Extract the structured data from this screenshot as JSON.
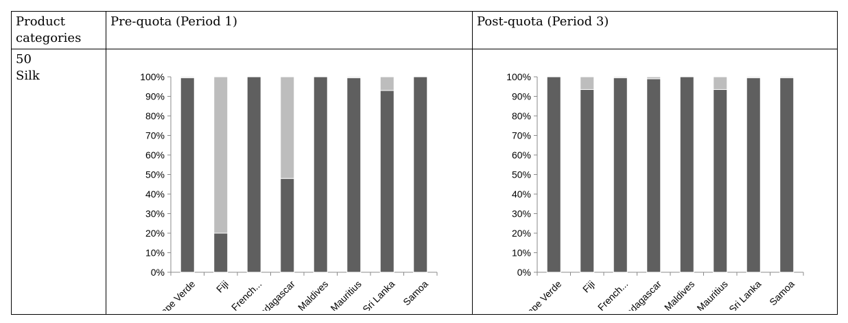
{
  "table": {
    "header": {
      "col1": [
        "Product",
        "categories"
      ],
      "col2": "Pre-quota (Period 1)",
      "col3": "Post-quota (Period 3)"
    },
    "row": {
      "category_code": "50",
      "category_name": "Silk"
    }
  },
  "colors": {
    "dark_series": "#5f5f5f",
    "light_series": "#bdbdbd",
    "axis": "#888888"
  },
  "chart_data": [
    {
      "type": "bar",
      "stacked": true,
      "title": "",
      "xlabel": "",
      "ylabel": "",
      "ylim": [
        0,
        1
      ],
      "yticks": [
        "0%",
        "10%",
        "20%",
        "30%",
        "40%",
        "50%",
        "60%",
        "70%",
        "80%",
        "90%",
        "100%"
      ],
      "categories": [
        "Cape Verde",
        "Fiji",
        "French...",
        "Madagascar",
        "Maldives",
        "Mauritius",
        "Sri Lanka",
        "Samoa"
      ],
      "series": [
        {
          "values": [
            0.995,
            0.2,
            1.0,
            0.48,
            1.0,
            0.995,
            0.93,
            1.0
          ]
        },
        {
          "values": [
            0.005,
            0.8,
            0.0,
            0.52,
            0.0,
            0.005,
            0.07,
            0.0
          ]
        }
      ],
      "grid": false,
      "legend": "none"
    },
    {
      "type": "bar",
      "stacked": true,
      "title": "",
      "xlabel": "",
      "ylabel": "",
      "ylim": [
        0,
        1
      ],
      "yticks": [
        "0%",
        "10%",
        "20%",
        "30%",
        "40%",
        "50%",
        "60%",
        "70%",
        "80%",
        "90%",
        "100%"
      ],
      "categories": [
        "Cape Verde",
        "Fiji",
        "French...",
        "Madagascar",
        "Maldives",
        "Mauritius",
        "Sri Lanka",
        "Samoa"
      ],
      "series": [
        {
          "values": [
            1.0,
            0.935,
            0.995,
            0.99,
            1.0,
            0.935,
            0.995,
            0.995
          ]
        },
        {
          "values": [
            0.0,
            0.065,
            0.005,
            0.01,
            0.0,
            0.065,
            0.005,
            0.005
          ]
        }
      ],
      "grid": false,
      "legend": "none"
    }
  ]
}
